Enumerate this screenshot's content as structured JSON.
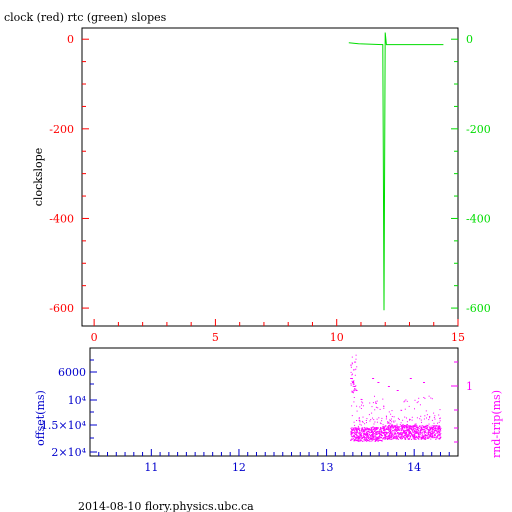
{
  "title": "clock (red) rtc (green) slopes",
  "footer": "2014-08-10 flory.physics.ubc.ca",
  "colors": {
    "red": "#ff0000",
    "green": "#00dd00",
    "blue": "#0000cc",
    "magenta": "#ff00ff",
    "black": "#000000"
  },
  "chart_data": [
    {
      "type": "line",
      "ylabel": "clockslope",
      "xlim": [
        -0.5,
        15
      ],
      "ylim": [
        -640,
        25
      ],
      "x_ticks": [
        "0",
        "5",
        "10",
        "15"
      ],
      "x_tick_values": [
        0,
        5,
        10,
        15
      ],
      "y_left_ticks": [
        "0",
        "-200",
        "-400",
        "-600"
      ],
      "y_right_ticks": [
        "0",
        "-200",
        "-400",
        "-600"
      ],
      "y_tick_values": [
        0,
        -200,
        -400,
        -600
      ],
      "series": [
        {
          "color": "green",
          "points": [
            [
              10.5,
              -8
            ],
            [
              10.9,
              -10
            ],
            [
              11.9,
              -12
            ],
            [
              11.95,
              -605
            ],
            [
              12.0,
              15
            ],
            [
              12.05,
              -12
            ],
            [
              14.4,
              -12
            ]
          ]
        }
      ]
    },
    {
      "type": "scatter",
      "ylabel_left": "offset(ms)",
      "ylabel_right": "rnd-trip(ms)",
      "xlim": [
        10.3,
        14.5
      ],
      "x_ticks": [
        "11",
        "12",
        "13",
        "14"
      ],
      "x_tick_values": [
        11,
        12,
        13,
        14
      ],
      "y_left_ticks": [
        "6000",
        "10⁴",
        "1.5×10⁴",
        "2×10⁴"
      ],
      "y_right_ticks": [
        "1"
      ],
      "series": [
        {
          "color": "magenta",
          "x_range": [
            13.27,
            14.3
          ],
          "band_center_ms": 0.35,
          "outliers_x": [
            13.27,
            13.29,
            13.31,
            13.33,
            13.52,
            13.58,
            13.7,
            13.8,
            13.95,
            14.1
          ]
        }
      ]
    }
  ]
}
